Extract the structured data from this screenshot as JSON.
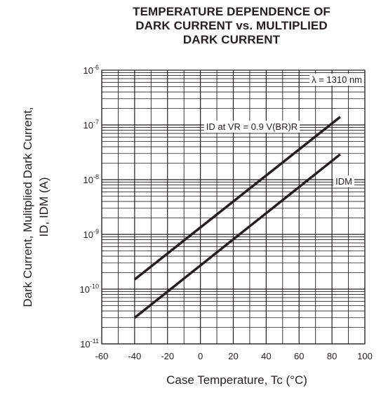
{
  "chart_data": {
    "type": "line",
    "title_lines": [
      "TEMPERATURE DEPENDENCE OF",
      "DARK CURRENT vs. MULTIPLIED",
      "DARK CURRENT"
    ],
    "xlabel": "Case Temperature, Tc (°C)",
    "ylabel_lines": [
      "Dark Current, Mulitplied Dark Current,",
      "ID, IDM (A)"
    ],
    "xlim": [
      -60,
      100
    ],
    "xticks": [
      "-60",
      "-40",
      "-20",
      "0",
      "20",
      "40",
      "60",
      "80",
      "100"
    ],
    "ylim": [
      1e-11,
      1e-06
    ],
    "yscale": "log",
    "ytick_bases": [
      "10",
      "10",
      "10",
      "10",
      "10",
      "10"
    ],
    "ytick_exponents": [
      "-11",
      "-10",
      "-9",
      "-8",
      "-7",
      "-6"
    ],
    "grid": true,
    "series": [
      {
        "name": "ID at VR = 0.9 V(BR)R",
        "x": [
          -40,
          85
        ],
        "y": [
          1.5e-10,
          1.4e-07
        ]
      },
      {
        "name": "IDM",
        "x": [
          -40,
          85
        ],
        "y": [
          3e-11,
          2.9e-08
        ]
      }
    ],
    "annotations": [
      "λ = 1310 nm"
    ]
  }
}
